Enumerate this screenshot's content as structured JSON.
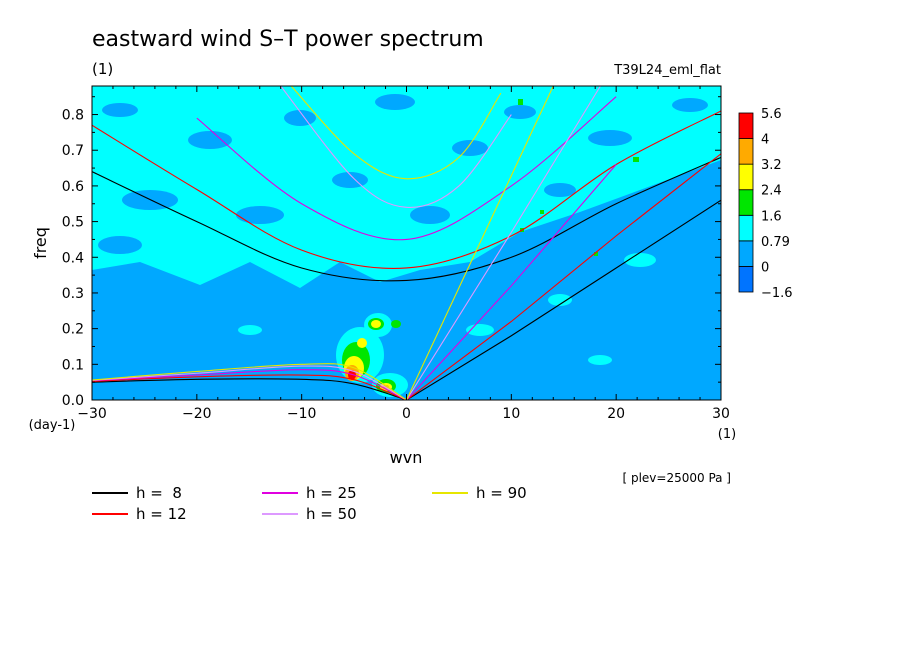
{
  "title": "eastward wind S–T power spectrum",
  "subtitle": "(1)",
  "run_label": "T39L24_eml_flat",
  "annotation": "[ plev=25000 Pa ]",
  "chart_data": {
    "type": "heatmap",
    "xlabel": "wvn",
    "x_unit": "(1)",
    "ylabel": "freq",
    "y_unit": "(day-1)",
    "xlim": [
      -30,
      30
    ],
    "ylim": [
      0,
      0.88
    ],
    "x_ticks": [
      -30,
      -20,
      -10,
      0,
      10,
      20,
      30
    ],
    "y_ticks": [
      0.0,
      0.1,
      0.2,
      0.3,
      0.4,
      0.5,
      0.6,
      0.7,
      0.8
    ],
    "colorbar": {
      "levels": [
        "-1.6",
        "0",
        "0.79",
        "1.6",
        "2.4",
        "3.2",
        "4",
        "5.6"
      ],
      "colors": [
        "#0074ff",
        "#00a8ff",
        "#00ffff",
        "#00e600",
        "#ffff00",
        "#ffaa00",
        "#ff0000"
      ]
    },
    "legend": [
      {
        "label": "h =  8",
        "equivalent_depth": 8,
        "color": "#000000"
      },
      {
        "label": "h = 12",
        "equivalent_depth": 12,
        "color": "#ff0000"
      },
      {
        "label": "h = 25",
        "equivalent_depth": 25,
        "color": "#e000e0"
      },
      {
        "label": "h = 50",
        "equivalent_depth": 50,
        "color": "#dd99ff"
      },
      {
        "label": "h = 90",
        "equivalent_depth": 90,
        "color": "#e6e600"
      }
    ],
    "dispersion_curves": [
      {
        "h": 8,
        "eig": [
          {
            "x": -30,
            "y": 0.64
          },
          {
            "x": -20,
            "y": 0.5
          },
          {
            "x": -10,
            "y": 0.37
          },
          {
            "x": 0,
            "y": 0.335
          },
          {
            "x": 10,
            "y": 0.4
          },
          {
            "x": 20,
            "y": 0.55
          },
          {
            "x": 30,
            "y": 0.68
          }
        ],
        "rossby": [
          {
            "x": -30,
            "y": 0.05
          },
          {
            "x": -20,
            "y": 0.058
          },
          {
            "x": -10,
            "y": 0.058
          },
          {
            "x": -5,
            "y": 0.045
          },
          {
            "x": 0,
            "y": 0.0
          }
        ],
        "kelvin": [
          {
            "x": 0,
            "y": 0.0
          },
          {
            "x": 10,
            "y": 0.18
          },
          {
            "x": 20,
            "y": 0.37
          },
          {
            "x": 30,
            "y": 0.56
          }
        ]
      },
      {
        "h": 12,
        "eig": [
          {
            "x": -30,
            "y": 0.77
          },
          {
            "x": -20,
            "y": 0.59
          },
          {
            "x": -10,
            "y": 0.42
          },
          {
            "x": 0,
            "y": 0.37
          },
          {
            "x": 10,
            "y": 0.46
          },
          {
            "x": 20,
            "y": 0.66
          },
          {
            "x": 30,
            "y": 0.81
          }
        ],
        "rossby": [
          {
            "x": -30,
            "y": 0.052
          },
          {
            "x": -20,
            "y": 0.065
          },
          {
            "x": -10,
            "y": 0.07
          },
          {
            "x": -5,
            "y": 0.057
          },
          {
            "x": 0,
            "y": 0.0
          }
        ],
        "kelvin": [
          {
            "x": 0,
            "y": 0.0
          },
          {
            "x": 10,
            "y": 0.22
          },
          {
            "x": 20,
            "y": 0.46
          },
          {
            "x": 30,
            "y": 0.69
          }
        ]
      },
      {
        "h": 25,
        "eig": [
          {
            "x": -20,
            "y": 0.79
          },
          {
            "x": -10,
            "y": 0.55
          },
          {
            "x": 0,
            "y": 0.45
          },
          {
            "x": 10,
            "y": 0.6
          },
          {
            "x": 20,
            "y": 0.85
          }
        ],
        "rossby": [
          {
            "x": -30,
            "y": 0.054
          },
          {
            "x": -20,
            "y": 0.07
          },
          {
            "x": -10,
            "y": 0.085
          },
          {
            "x": -5,
            "y": 0.07
          },
          {
            "x": 0,
            "y": 0.0
          }
        ],
        "kelvin": [
          {
            "x": 0,
            "y": 0.0
          },
          {
            "x": 10,
            "y": 0.32
          },
          {
            "x": 20,
            "y": 0.66
          }
        ]
      },
      {
        "h": 50,
        "eig": [
          {
            "x": -12,
            "y": 0.88
          },
          {
            "x": -5,
            "y": 0.62
          },
          {
            "x": 0,
            "y": 0.54
          },
          {
            "x": 5,
            "y": 0.6
          },
          {
            "x": 10,
            "y": 0.8
          }
        ],
        "rossby": [
          {
            "x": -30,
            "y": 0.055
          },
          {
            "x": -20,
            "y": 0.075
          },
          {
            "x": -10,
            "y": 0.095
          },
          {
            "x": -5,
            "y": 0.08
          },
          {
            "x": 0,
            "y": 0.0
          }
        ],
        "kelvin": [
          {
            "x": 0,
            "y": 0.0
          },
          {
            "x": 10,
            "y": 0.47
          },
          {
            "x": 18.5,
            "y": 0.88
          }
        ]
      },
      {
        "h": 90,
        "eig": [
          {
            "x": -11,
            "y": 0.88
          },
          {
            "x": -5,
            "y": 0.69
          },
          {
            "x": 0,
            "y": 0.62
          },
          {
            "x": 5,
            "y": 0.68
          },
          {
            "x": 9,
            "y": 0.86
          }
        ],
        "rossby": [
          {
            "x": -30,
            "y": 0.056
          },
          {
            "x": -20,
            "y": 0.08
          },
          {
            "x": -10,
            "y": 0.1
          },
          {
            "x": -5,
            "y": 0.09
          },
          {
            "x": 0,
            "y": 0.0
          }
        ],
        "kelvin": [
          {
            "x": 0,
            "y": 0.0
          },
          {
            "x": 7,
            "y": 0.44
          },
          {
            "x": 14,
            "y": 0.88
          }
        ]
      }
    ],
    "power_features": [
      {
        "x": -5,
        "y": 0.08,
        "value": 5.6
      },
      {
        "x": -3,
        "y": 0.13,
        "value": 3.2
      },
      {
        "x": -2.5,
        "y": 0.22,
        "value": 3.2
      },
      {
        "x": -2,
        "y": 0.04,
        "value": 4
      },
      {
        "x": -1,
        "y": 0.02,
        "value": 3.2
      }
    ]
  }
}
